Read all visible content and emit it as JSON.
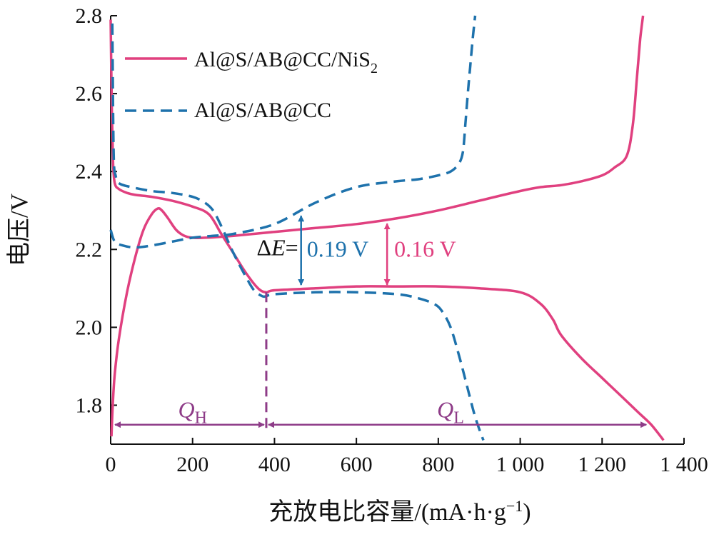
{
  "chart_data": {
    "type": "line",
    "xlabel_main": "充放电比容量/(mA·h·g",
    "xlabel_sup": "−1",
    "xlabel_close": ")",
    "ylabel": "电压/V",
    "xlim": [
      0,
      1400
    ],
    "ylim": [
      1.7,
      2.8
    ],
    "x_ticks": [
      0,
      200,
      400,
      600,
      800,
      1000,
      1200,
      1400
    ],
    "x_tick_labels": [
      "0",
      "200",
      "400",
      "600",
      "800",
      "1 000",
      "1 200",
      "1 400"
    ],
    "y_ticks": [
      1.8,
      2.0,
      2.2,
      2.4,
      2.6,
      2.8
    ],
    "y_tick_labels": [
      "1.8",
      "2.0",
      "2.2",
      "2.4",
      "2.6",
      "2.8"
    ],
    "legend_position": "top-left",
    "series": [
      {
        "name": "Al@S/AB@CC/NiS2",
        "legend_main": "Al@S/AB@CC/NiS",
        "legend_sub": "2",
        "color": "#e0407f",
        "style": "solid",
        "curves": [
          {
            "segment": "discharge",
            "x": [
              0,
              3,
              6,
              10,
              20,
              40,
              60,
              100,
              150,
              200,
              240,
              270,
              300,
              330,
              360,
              380,
              400,
              500,
              600,
              700,
              800,
              900,
              1000,
              1050,
              1080,
              1100,
              1150,
              1200,
              1250,
              1290,
              1320,
              1350
            ],
            "y": [
              2.79,
              2.55,
              2.42,
              2.37,
              2.355,
              2.345,
              2.34,
              2.335,
              2.325,
              2.31,
              2.29,
              2.24,
              2.19,
              2.14,
              2.1,
              2.09,
              2.095,
              2.1,
              2.105,
              2.105,
              2.105,
              2.1,
              2.09,
              2.06,
              2.02,
              1.98,
              1.92,
              1.87,
              1.82,
              1.78,
              1.75,
              1.71
            ]
          },
          {
            "segment": "charge",
            "x": [
              2,
              5,
              10,
              20,
              40,
              60,
              80,
              100,
              115,
              125,
              140,
              160,
              180,
              200,
              230,
              300,
              400,
              500,
              600,
              700,
              800,
              900,
              1000,
              1050,
              1100,
              1150,
              1200,
              1230,
              1260,
              1275,
              1285,
              1293,
              1300
            ],
            "y": [
              1.72,
              1.8,
              1.88,
              1.97,
              2.09,
              2.18,
              2.25,
              2.29,
              2.305,
              2.3,
              2.28,
              2.25,
              2.235,
              2.23,
              2.23,
              2.235,
              2.245,
              2.255,
              2.265,
              2.28,
              2.3,
              2.325,
              2.35,
              2.36,
              2.365,
              2.375,
              2.39,
              2.41,
              2.44,
              2.52,
              2.64,
              2.74,
              2.8
            ]
          }
        ]
      },
      {
        "name": "Al@S/AB@CC",
        "legend_main": "Al@S/AB@CC",
        "legend_sub": "",
        "color": "#1e72ac",
        "style": "dashed",
        "curves": [
          {
            "segment": "discharge",
            "x": [
              4,
              6,
              8,
              12,
              20,
              50,
              100,
              150,
              200,
              230,
              250,
              270,
              300,
              330,
              350,
              370,
              380,
              400,
              500,
              600,
              700,
              750,
              790,
              810,
              830,
              850,
              870,
              890,
              910
            ],
            "y": [
              2.78,
              2.55,
              2.42,
              2.39,
              2.37,
              2.36,
              2.35,
              2.345,
              2.335,
              2.32,
              2.3,
              2.26,
              2.19,
              2.13,
              2.095,
              2.08,
              2.08,
              2.085,
              2.09,
              2.09,
              2.085,
              2.075,
              2.06,
              2.04,
              2.0,
              1.93,
              1.85,
              1.77,
              1.71
            ]
          },
          {
            "segment": "charge",
            "x": [
              0,
              10,
              30,
              60,
              100,
              150,
              200,
              250,
              300,
              400,
              500,
              600,
              700,
              750,
              800,
              830,
              850,
              860,
              866,
              872,
              878,
              884,
              890
            ],
            "y": [
              2.25,
              2.22,
              2.21,
              2.205,
              2.21,
              2.22,
              2.23,
              2.235,
              2.24,
              2.265,
              2.32,
              2.36,
              2.375,
              2.38,
              2.39,
              2.4,
              2.42,
              2.45,
              2.52,
              2.6,
              2.67,
              2.74,
              2.8
            ]
          }
        ]
      }
    ],
    "annotations": {
      "delta_prefix": "Δ",
      "delta_var": "E",
      "delta_eq": "=",
      "gap_blue": "0.19 V",
      "gap_pink": "0.16 V",
      "qh_var": "Q",
      "qh_sub": "H",
      "ql_var": "Q",
      "ql_sub": "L",
      "colors": {
        "blue": "#1e72ac",
        "pink": "#e0407f",
        "purple": "#8e3c88"
      },
      "divider_x": 380,
      "q_arrow_y": 1.75,
      "blue_gap_x": 465,
      "blue_gap_y": [
        2.29,
        2.105
      ],
      "pink_gap_x": 675,
      "pink_gap_y": [
        2.27,
        2.105
      ]
    }
  }
}
